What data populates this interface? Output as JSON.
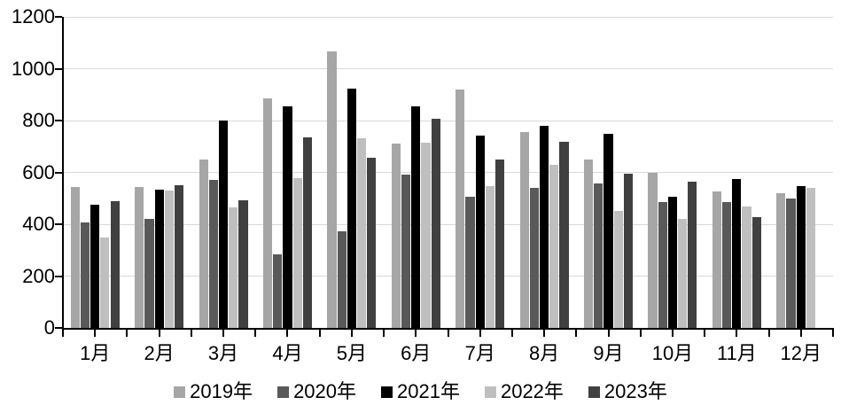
{
  "chart_data": {
    "type": "bar",
    "title": "",
    "xlabel": "",
    "ylabel": "",
    "categories": [
      "1月",
      "2月",
      "3月",
      "4月",
      "5月",
      "6月",
      "7月",
      "8月",
      "9月",
      "10月",
      "11月",
      "12月"
    ],
    "series": [
      {
        "name": "2019年",
        "color": "#a6a6a6",
        "values": [
          545,
          545,
          650,
          885,
          1065,
          710,
          920,
          755,
          648,
          598,
          527,
          520
        ]
      },
      {
        "name": "2020年",
        "color": "#595959",
        "values": [
          407,
          420,
          572,
          284,
          371,
          592,
          507,
          541,
          558,
          486,
          486,
          498
        ]
      },
      {
        "name": "2021年",
        "color": "#000000",
        "values": [
          476,
          534,
          801,
          853,
          924,
          853,
          742,
          779,
          750,
          505,
          573,
          546
        ]
      },
      {
        "name": "2022年",
        "color": "#bfbfbf",
        "values": [
          350,
          529,
          464,
          577,
          731,
          714,
          547,
          630,
          452,
          422,
          467,
          541
        ]
      },
      {
        "name": "2023年",
        "color": "#404040",
        "values": [
          489,
          549,
          494,
          736,
          658,
          807,
          650,
          719,
          596,
          564,
          429,
          null
        ]
      }
    ],
    "ylim": [
      0,
      1200
    ],
    "ytick_step": 200,
    "yticks": [
      0,
      200,
      400,
      600,
      800,
      1000,
      1200
    ],
    "grid": true,
    "legend_position": "bottom",
    "colors": {
      "gridline": "#d9d9d9",
      "axis": "#000000",
      "text": "#000000",
      "background": "#ffffff"
    }
  }
}
